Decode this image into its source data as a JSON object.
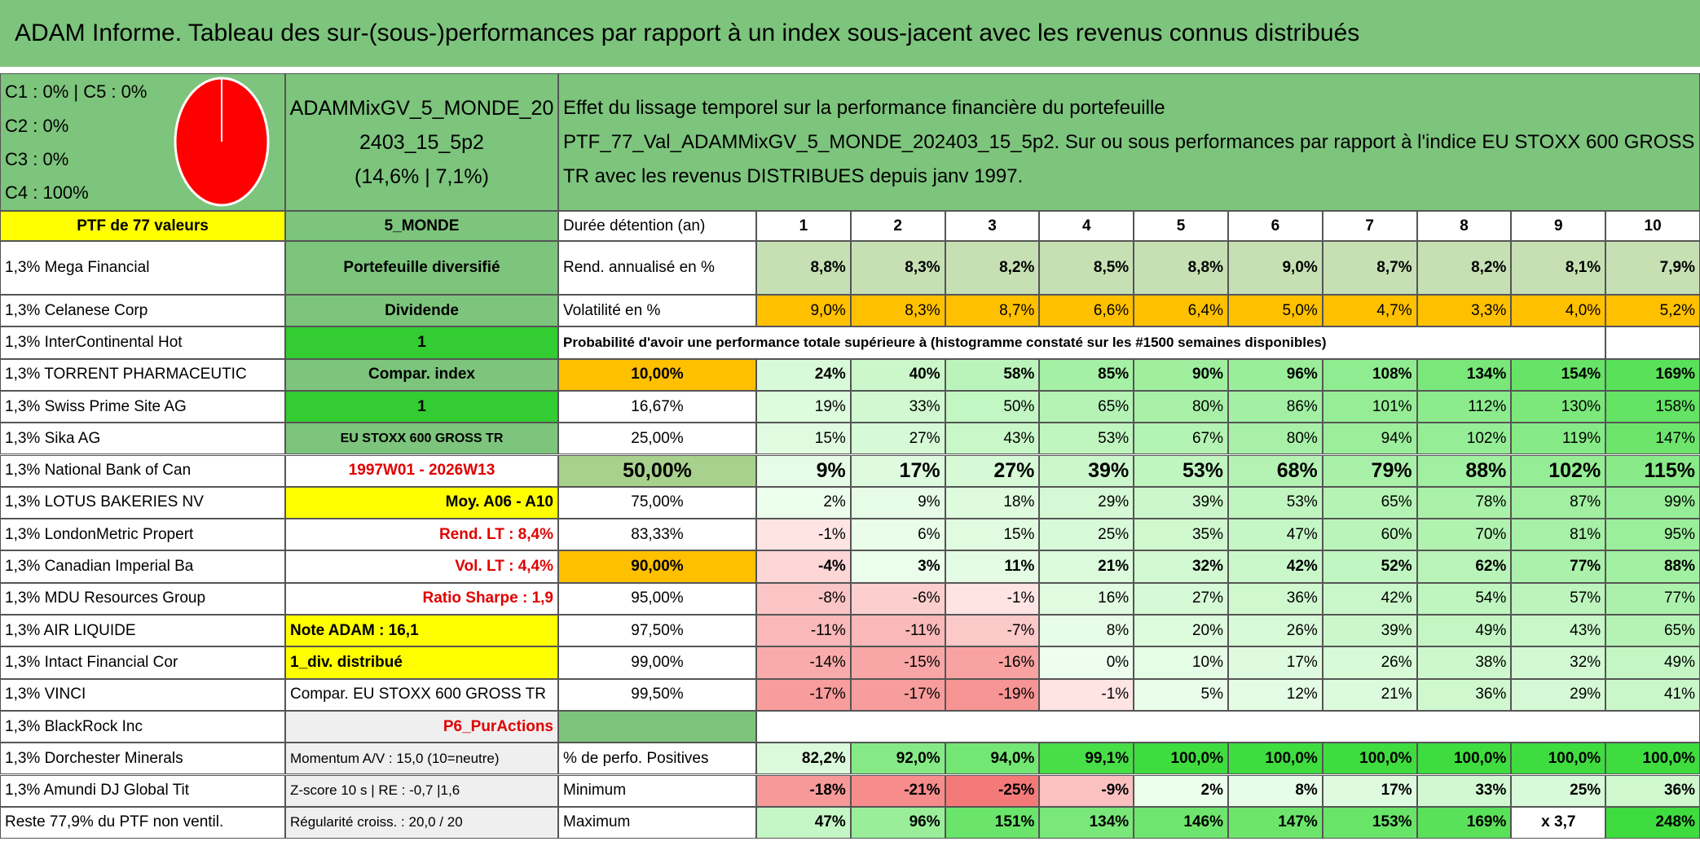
{
  "header": {
    "title": "ADAM Informe. Tableau des sur-(sous-)performances par rapport à un index sous-jacent avec les revenus connus distribués"
  },
  "summary": {
    "allocation": [
      "C1 : 0% | C5 : 0%",
      "C2 : 0%",
      "C3 : 0%",
      "C4 : 100%"
    ],
    "portfolio": [
      "ADAMMixGV_5_MONDE_20",
      "2403_15_5p2",
      "(14,6% | 7,1%)"
    ],
    "description": [
      "Effet du lissage temporel sur la performance financière du portefeuille",
      "PTF_77_Val_ADAMMixGV_5_MONDE_202403_15_5p2. Sur ou sous performances par rapport à l'indice EU STOXX 600 GROSS",
      "TR avec les revenus DISTRIBUES depuis janv 1997."
    ]
  },
  "table": {
    "rows": [
      {
        "holding": "PTF de 77 valeurs",
        "info": "5_MONDE",
        "stat": "Durée détention (an)",
        "values": [
          1,
          2,
          3,
          4,
          5,
          6,
          7,
          8,
          9,
          10
        ]
      },
      {
        "holding": "1,3% Mega Financial",
        "info": "Portefeuille diversifié",
        "stat": "Rend. annualisé en %",
        "values": [
          "8,8%",
          "8,3%",
          "8,2%",
          "8,5%",
          "8,8%",
          "9,0%",
          "8,7%",
          "8,2%",
          "8,1%",
          "7,9%"
        ]
      },
      {
        "holding": "1,3% Celanese Corp",
        "info": "Dividende",
        "stat": "Volatilité en %",
        "values": [
          "9,0%",
          "8,3%",
          "8,7%",
          "6,6%",
          "6,4%",
          "5,0%",
          "4,7%",
          "3,3%",
          "4,0%",
          "5,2%"
        ]
      },
      {
        "holding": "1,3% InterContinental Hot",
        "info": "1",
        "note": "Probabilité d'avoir une performance totale supérieure à (histogramme constaté sur les #1500 semaines disponibles)"
      },
      {
        "holding": "1,3% TORRENT PHARMACEUTIC",
        "info": "Compar. index",
        "stat": "10,00%",
        "values": [
          "24%",
          "40%",
          "58%",
          "85%",
          "90%",
          "96%",
          "108%",
          "134%",
          "154%",
          "169%"
        ]
      },
      {
        "holding": "1,3% Swiss Prime Site AG",
        "info": "1",
        "stat": "16,67%",
        "values": [
          "19%",
          "33%",
          "50%",
          "65%",
          "80%",
          "86%",
          "101%",
          "112%",
          "130%",
          "158%"
        ]
      },
      {
        "holding": "1,3% Sika AG",
        "info": "EU STOXX 600 GROSS TR",
        "stat": "25,00%",
        "values": [
          "15%",
          "27%",
          "43%",
          "53%",
          "67%",
          "80%",
          "94%",
          "102%",
          "119%",
          "147%"
        ]
      },
      {
        "holding": "1,3% National Bank of Can",
        "info": "1997W01 - 2026W13",
        "stat": "50,00%",
        "values": [
          "9%",
          "17%",
          "27%",
          "39%",
          "53%",
          "68%",
          "79%",
          "88%",
          "102%",
          "115%"
        ]
      },
      {
        "holding": "1,3% LOTUS BAKERIES NV",
        "info": "Moy. A06 - A10",
        "stat": "75,00%",
        "values": [
          "2%",
          "9%",
          "18%",
          "29%",
          "39%",
          "53%",
          "65%",
          "78%",
          "87%",
          "99%"
        ]
      },
      {
        "holding": "1,3% LondonMetric Propert",
        "info": "Rend. LT : 8,4%",
        "stat": "83,33%",
        "values": [
          "-1%",
          "6%",
          "15%",
          "25%",
          "35%",
          "47%",
          "60%",
          "70%",
          "81%",
          "95%"
        ]
      },
      {
        "holding": "1,3% Canadian Imperial Ba",
        "info": "Vol. LT : 4,4%",
        "stat": "90,00%",
        "values": [
          "-4%",
          "3%",
          "11%",
          "21%",
          "32%",
          "42%",
          "52%",
          "62%",
          "77%",
          "88%"
        ]
      },
      {
        "holding": "1,3% MDU Resources Group",
        "info": "Ratio Sharpe : 1,9",
        "stat": "95,00%",
        "values": [
          "-8%",
          "-6%",
          "-1%",
          "16%",
          "27%",
          "36%",
          "42%",
          "54%",
          "57%",
          "77%"
        ]
      },
      {
        "holding": "1,3% AIR LIQUIDE",
        "info": "Note ADAM : 16,1",
        "stat": "97,50%",
        "values": [
          "-11%",
          "-11%",
          "-7%",
          "8%",
          "20%",
          "26%",
          "39%",
          "49%",
          "43%",
          "65%"
        ]
      },
      {
        "holding": "1,3% Intact Financial Cor",
        "info": "1_div. distribué",
        "stat": "99,00%",
        "values": [
          "-14%",
          "-15%",
          "-16%",
          "0%",
          "10%",
          "17%",
          "26%",
          "38%",
          "32%",
          "49%"
        ]
      },
      {
        "holding": "1,3% VINCI",
        "info": "Compar. EU STOXX 600 GROSS TR",
        "stat": "99,50%",
        "values": [
          "-17%",
          "-17%",
          "-19%",
          "-1%",
          "5%",
          "12%",
          "21%",
          "36%",
          "29%",
          "41%"
        ]
      },
      {
        "holding": "1,3% BlackRock Inc",
        "info": "P6_PurActions"
      },
      {
        "holding": "1,3% Dorchester Minerals",
        "info": "Momentum A/V : 15,0 (10=neutre)",
        "stat": "% de perfo. Positives",
        "values": [
          "82,2%",
          "92,0%",
          "94,0%",
          "99,1%",
          "100,0%",
          "100,0%",
          "100,0%",
          "100,0%",
          "100,0%",
          "100,0%"
        ]
      },
      {
        "holding": "1,3% Amundi DJ Global Tit",
        "info": "Z-score 10 s | RE : -0,7 |1,6",
        "stat": "Minimum",
        "values": [
          "-18%",
          "-21%",
          "-25%",
          "-9%",
          "2%",
          "8%",
          "17%",
          "33%",
          "25%",
          "36%"
        ]
      },
      {
        "holding": "Reste 77,9% du PTF non ventil.",
        "info": "Régularité croiss. : 20,0 / 20",
        "stat": "Maximum",
        "values": [
          "47%",
          "96%",
          "151%",
          "134%",
          "146%",
          "147%",
          "153%",
          "169%",
          "x 3,7",
          "248%"
        ]
      }
    ]
  }
}
